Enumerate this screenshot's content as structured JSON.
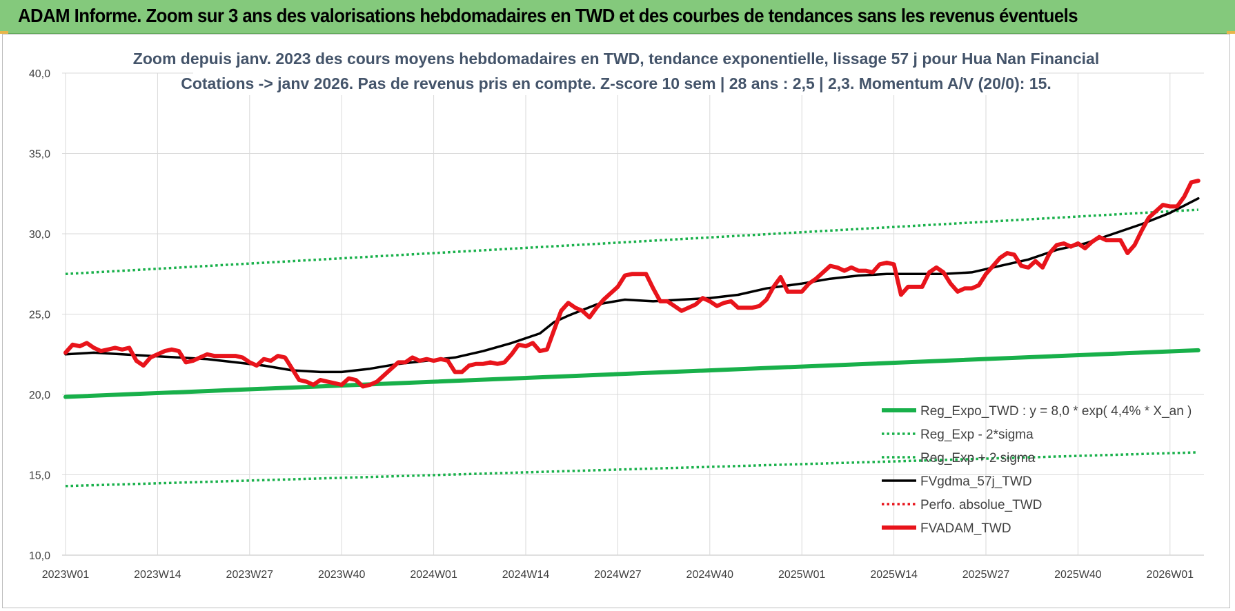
{
  "banner": {
    "title": "ADAM Informe. Zoom sur 3 ans des valorisations hebdomadaires en TWD et des courbes de tendances sans les revenus éventuels"
  },
  "colors": {
    "banner_bg": "#84c97c",
    "green": "#18b04a",
    "black": "#000000",
    "red": "#e8141b",
    "grid": "#d9d9d9",
    "title": "#44546a"
  },
  "chart_data": {
    "type": "line",
    "title": "Zoom depuis janv. 2023 des cours moyens hebdomadaires en TWD, tendance exponentielle, lissage 57 j pour Hua Nan Financial",
    "subtitle": "Cotations -> janv 2026. Pas de revenus pris en compte. Z-score 10 sem  | 28 ans : 2,5 | 2,3. Momentum A/V (20/0): 15.",
    "ylim": [
      10,
      40
    ],
    "y_ticks": [
      "10,0",
      "15,0",
      "20,0",
      "25,0",
      "30,0",
      "35,0",
      "40,0"
    ],
    "x_ticks": [
      "2023W01",
      "2023W14",
      "2023W27",
      "2023W40",
      "2024W01",
      "2024W14",
      "2024W27",
      "2024W40",
      "2025W01",
      "2025W14",
      "2025W27",
      "2025W40",
      "2026W01"
    ],
    "grid": true,
    "legend_position": "bottom-right",
    "legend": [
      {
        "name": "Reg_Expo_TWD : y = 8,0 * exp( 4,4% *  X_an )",
        "style": "thick-solid",
        "color": "#18b04a"
      },
      {
        "name": "Reg_Exp - 2*sigma",
        "style": "dotted",
        "color": "#18b04a"
      },
      {
        "name": "Reg_Exp + 2 sigma",
        "style": "dotted",
        "color": "#18b04a"
      },
      {
        "name": "FVgdma_57j_TWD",
        "style": "solid",
        "color": "#000000"
      },
      {
        "name": "Perfo. absolue_TWD",
        "style": "dotted",
        "color": "#e8141b"
      },
      {
        "name": "FVADAM_TWD",
        "style": "thick-solid",
        "color": "#e8141b"
      }
    ],
    "series": [
      {
        "name": "Reg_Expo_TWD : y = 8,0 * exp( 4,4% *  X_an )",
        "x": [
          "2023W01",
          "2026W05"
        ],
        "y": [
          19.85,
          22.75
        ]
      },
      {
        "name": "Reg_Exp - 2*sigma",
        "x": [
          "2023W01",
          "2026W05"
        ],
        "y": [
          14.3,
          16.4
        ]
      },
      {
        "name": "Reg_Exp + 2 sigma",
        "x": [
          "2023W01",
          "2026W05"
        ],
        "y": [
          27.5,
          31.5
        ]
      },
      {
        "name": "FVgdma_57j_TWD",
        "x": [
          "2023W01",
          "2023W05",
          "2023W09",
          "2023W13",
          "2023W17",
          "2023W21",
          "2023W25",
          "2023W29",
          "2023W33",
          "2023W37",
          "2023W40",
          "2023W44",
          "2023W48",
          "2023W52",
          "2024W04",
          "2024W08",
          "2024W12",
          "2024W16",
          "2024W18",
          "2024W20",
          "2024W24",
          "2024W28",
          "2024W32",
          "2024W36",
          "2024W40",
          "2024W44",
          "2024W48",
          "2025W01",
          "2025W05",
          "2025W09",
          "2025W13",
          "2025W17",
          "2025W21",
          "2025W25",
          "2025W29",
          "2025W33",
          "2025W37",
          "2025W41",
          "2025W45",
          "2025W49",
          "2026W01",
          "2026W05"
        ],
        "y": [
          22.5,
          22.6,
          22.5,
          22.4,
          22.3,
          22.2,
          22.0,
          21.8,
          21.5,
          21.4,
          21.4,
          21.6,
          21.9,
          22.1,
          22.3,
          22.7,
          23.2,
          23.8,
          24.5,
          24.9,
          25.6,
          25.9,
          25.8,
          25.9,
          26.0,
          26.2,
          26.6,
          26.9,
          27.2,
          27.4,
          27.5,
          27.5,
          27.5,
          27.6,
          28.0,
          28.4,
          29.0,
          29.4,
          30.0,
          30.6,
          31.3,
          32.2
        ]
      },
      {
        "name": "FVADAM_TWD",
        "x": [
          "2023W01",
          "2023W02",
          "2023W03",
          "2023W04",
          "2023W05",
          "2023W06",
          "2023W07",
          "2023W08",
          "2023W09",
          "2023W10",
          "2023W11",
          "2023W12",
          "2023W13",
          "2023W14",
          "2023W15",
          "2023W16",
          "2023W17",
          "2023W18",
          "2023W19",
          "2023W20",
          "2023W21",
          "2023W22",
          "2023W23",
          "2023W24",
          "2023W25",
          "2023W26",
          "2023W27",
          "2023W28",
          "2023W29",
          "2023W30",
          "2023W31",
          "2023W32",
          "2023W33",
          "2023W34",
          "2023W35",
          "2023W36",
          "2023W37",
          "2023W38",
          "2023W39",
          "2023W40",
          "2023W41",
          "2023W42",
          "2023W43",
          "2023W44",
          "2023W45",
          "2023W46",
          "2023W47",
          "2023W48",
          "2023W49",
          "2023W50",
          "2023W51",
          "2023W52",
          "2024W01",
          "2024W02",
          "2024W03",
          "2024W04",
          "2024W05",
          "2024W06",
          "2024W07",
          "2024W08",
          "2024W09",
          "2024W10",
          "2024W11",
          "2024W12",
          "2024W13",
          "2024W14",
          "2024W15",
          "2024W16",
          "2024W17",
          "2024W18",
          "2024W19",
          "2024W20",
          "2024W21",
          "2024W22",
          "2024W23",
          "2024W24",
          "2024W25",
          "2024W26",
          "2024W27",
          "2024W28",
          "2024W29",
          "2024W30",
          "2024W31",
          "2024W32",
          "2024W33",
          "2024W34",
          "2024W35",
          "2024W36",
          "2024W37",
          "2024W38",
          "2024W39",
          "2024W40",
          "2024W41",
          "2024W42",
          "2024W43",
          "2024W44",
          "2024W45",
          "2024W46",
          "2024W47",
          "2024W48",
          "2024W49",
          "2024W50",
          "2024W51",
          "2024W52",
          "2025W01",
          "2025W02",
          "2025W03",
          "2025W04",
          "2025W05",
          "2025W06",
          "2025W07",
          "2025W08",
          "2025W09",
          "2025W10",
          "2025W11",
          "2025W12",
          "2025W13",
          "2025W14",
          "2025W15",
          "2025W16",
          "2025W17",
          "2025W18",
          "2025W19",
          "2025W20",
          "2025W21",
          "2025W22",
          "2025W23",
          "2025W24",
          "2025W25",
          "2025W26",
          "2025W27",
          "2025W28",
          "2025W29",
          "2025W30",
          "2025W31",
          "2025W32",
          "2025W33",
          "2025W34",
          "2025W35",
          "2025W36",
          "2025W37",
          "2025W38",
          "2025W39",
          "2025W40",
          "2025W41",
          "2025W42",
          "2025W43",
          "2025W44",
          "2025W45",
          "2025W46",
          "2025W47",
          "2025W48",
          "2025W49",
          "2025W50",
          "2025W51",
          "2025W52",
          "2026W01",
          "2026W02",
          "2026W03",
          "2026W04",
          "2026W05"
        ],
        "y": [
          22.6,
          23.1,
          23.0,
          23.2,
          22.9,
          22.7,
          22.8,
          22.9,
          22.8,
          22.9,
          22.1,
          21.8,
          22.3,
          22.5,
          22.7,
          22.8,
          22.7,
          22.0,
          22.1,
          22.3,
          22.5,
          22.4,
          22.4,
          22.4,
          22.4,
          22.3,
          22.0,
          21.8,
          22.2,
          22.1,
          22.4,
          22.3,
          21.6,
          20.9,
          20.8,
          20.6,
          20.9,
          20.8,
          20.7,
          20.6,
          21.0,
          20.9,
          20.5,
          20.6,
          20.8,
          21.2,
          21.6,
          22.0,
          22.0,
          22.3,
          22.1,
          22.2,
          22.1,
          22.2,
          22.1,
          21.4,
          21.4,
          21.8,
          21.9,
          21.9,
          22.0,
          21.9,
          22.0,
          22.5,
          23.1,
          23.0,
          23.2,
          22.7,
          22.8,
          24.0,
          25.2,
          25.7,
          25.4,
          25.2,
          24.8,
          25.4,
          25.9,
          26.3,
          26.7,
          27.4,
          27.5,
          27.5,
          27.5,
          26.6,
          25.8,
          25.8,
          25.5,
          25.2,
          25.4,
          25.6,
          26.0,
          25.8,
          25.5,
          25.7,
          25.8,
          25.4,
          25.4,
          25.4,
          25.5,
          25.9,
          26.7,
          27.3,
          26.4,
          26.4,
          26.4,
          26.9,
          27.2,
          27.6,
          28.0,
          27.9,
          27.7,
          27.9,
          27.7,
          27.7,
          27.6,
          28.1,
          28.2,
          28.1,
          26.2,
          26.7,
          26.7,
          26.7,
          27.6,
          27.9,
          27.6,
          26.9,
          26.4,
          26.6,
          26.6,
          26.8,
          27.5,
          28.0,
          28.5,
          28.8,
          28.7,
          28.0,
          27.9,
          28.3,
          27.9,
          28.8,
          29.3,
          29.4,
          29.2,
          29.4,
          29.1,
          29.5,
          29.8,
          29.6,
          29.6,
          29.6,
          28.8,
          29.3,
          30.2,
          31.0,
          31.4,
          31.8,
          31.7,
          31.7,
          32.3,
          33.2,
          33.3
        ]
      }
    ]
  }
}
